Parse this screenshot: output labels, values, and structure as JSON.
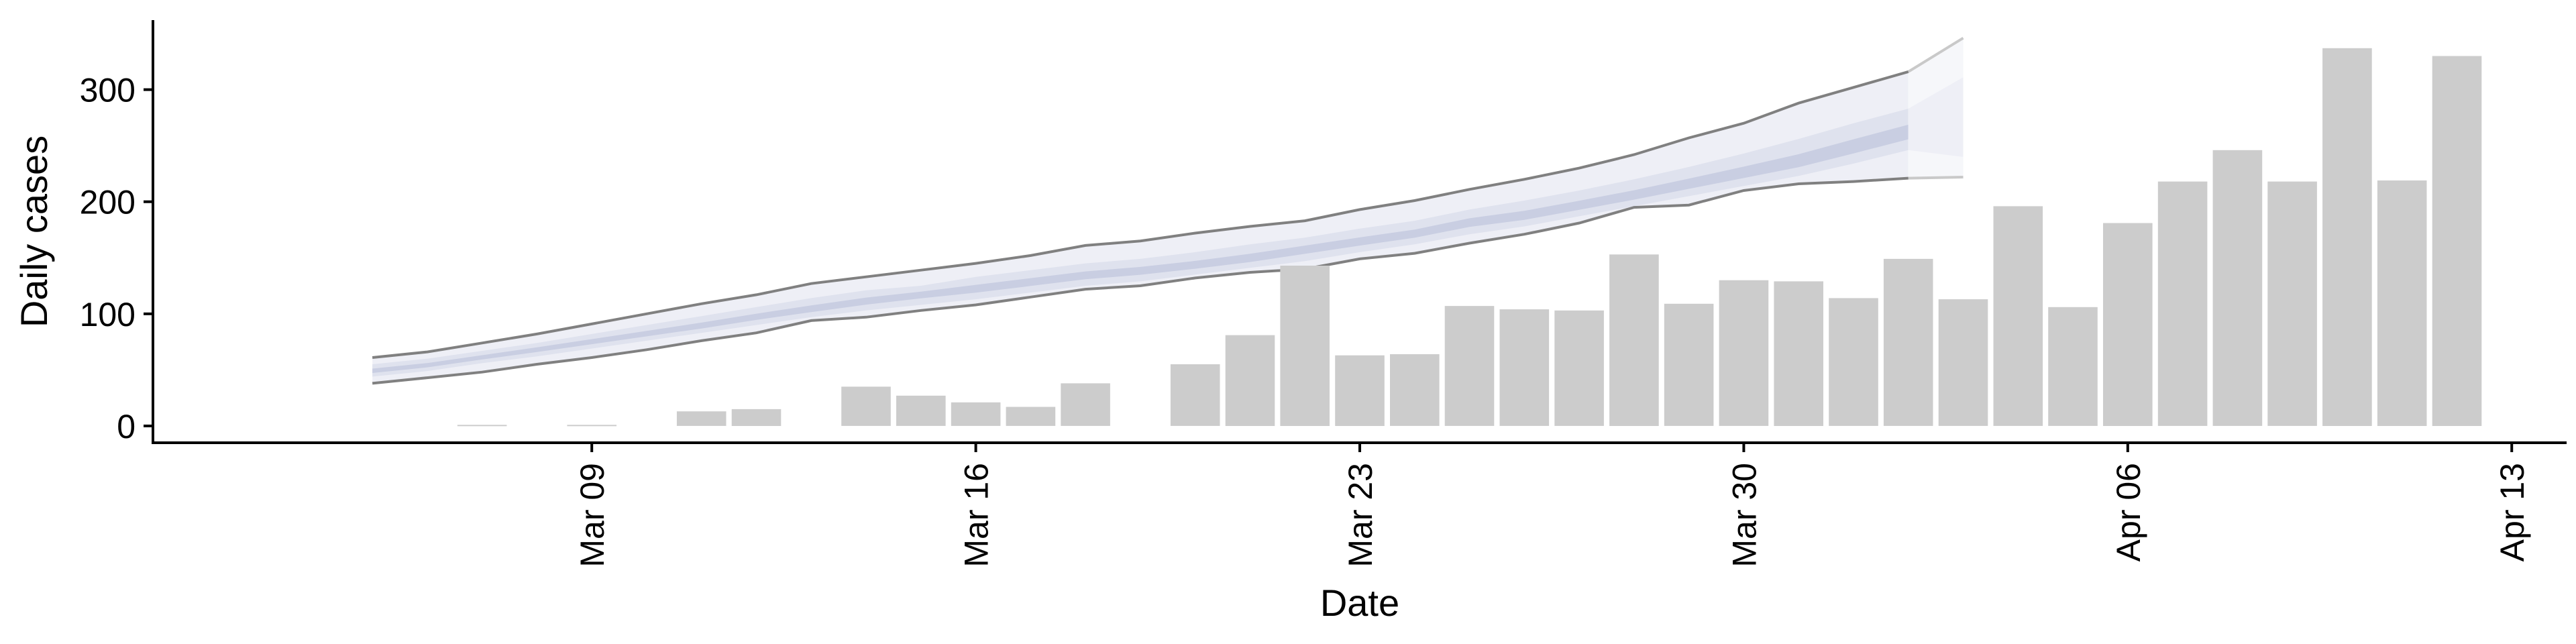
{
  "chart_data": {
    "type": "bar",
    "xlabel": "Date",
    "ylabel": "Daily cases",
    "ylim": [
      -15,
      362
    ],
    "xlim": [
      "2020-03-01",
      "2020-04-14"
    ],
    "grid": false,
    "legend": "none",
    "y_ticks": [
      0,
      100,
      200,
      300
    ],
    "x_ticks": [
      {
        "date": "2020-03-09",
        "label": "Mar 09"
      },
      {
        "date": "2020-03-16",
        "label": "Mar 16"
      },
      {
        "date": "2020-03-23",
        "label": "Mar 23"
      },
      {
        "date": "2020-03-30",
        "label": "Mar 30"
      },
      {
        "date": "2020-04-06",
        "label": "Apr 06"
      },
      {
        "date": "2020-04-13",
        "label": "Apr 13"
      }
    ],
    "bars": {
      "color": "#cccccc",
      "data": [
        {
          "date": "2020-03-07",
          "value": 1
        },
        {
          "date": "2020-03-09",
          "value": 1
        },
        {
          "date": "2020-03-11",
          "value": 13
        },
        {
          "date": "2020-03-12",
          "value": 15
        },
        {
          "date": "2020-03-14",
          "value": 35
        },
        {
          "date": "2020-03-15",
          "value": 27
        },
        {
          "date": "2020-03-16",
          "value": 21
        },
        {
          "date": "2020-03-17",
          "value": 17
        },
        {
          "date": "2020-03-18",
          "value": 38
        },
        {
          "date": "2020-03-20",
          "value": 55
        },
        {
          "date": "2020-03-21",
          "value": 81
        },
        {
          "date": "2020-03-22",
          "value": 143
        },
        {
          "date": "2020-03-23",
          "value": 63
        },
        {
          "date": "2020-03-24",
          "value": 64
        },
        {
          "date": "2020-03-25",
          "value": 107
        },
        {
          "date": "2020-03-26",
          "value": 104
        },
        {
          "date": "2020-03-27",
          "value": 103
        },
        {
          "date": "2020-03-28",
          "value": 153
        },
        {
          "date": "2020-03-29",
          "value": 109
        },
        {
          "date": "2020-03-30",
          "value": 130
        },
        {
          "date": "2020-03-31",
          "value": 129
        },
        {
          "date": "2020-04-01",
          "value": 114
        },
        {
          "date": "2020-04-02",
          "value": 149
        },
        {
          "date": "2020-04-03",
          "value": 113
        },
        {
          "date": "2020-04-04",
          "value": 196
        },
        {
          "date": "2020-04-05",
          "value": 106
        },
        {
          "date": "2020-04-06",
          "value": 181
        },
        {
          "date": "2020-04-07",
          "value": 218
        },
        {
          "date": "2020-04-08",
          "value": 246
        },
        {
          "date": "2020-04-09",
          "value": 218
        },
        {
          "date": "2020-04-10",
          "value": 337
        },
        {
          "date": "2020-04-11",
          "value": 219
        },
        {
          "date": "2020-04-12",
          "value": 330
        }
      ]
    },
    "band": {
      "outer_fill": "#eeeff6",
      "mid_fill": "#dfe2ee",
      "inner_fill": "#c9cee2",
      "line_color": "#808080",
      "fade_tail_fill": "#f6f7fa",
      "dates": [
        "2020-03-05",
        "2020-03-06",
        "2020-03-07",
        "2020-03-08",
        "2020-03-09",
        "2020-03-10",
        "2020-03-11",
        "2020-03-12",
        "2020-03-13",
        "2020-03-14",
        "2020-03-15",
        "2020-03-16",
        "2020-03-17",
        "2020-03-18",
        "2020-03-19",
        "2020-03-20",
        "2020-03-21",
        "2020-03-22",
        "2020-03-23",
        "2020-03-24",
        "2020-03-25",
        "2020-03-26",
        "2020-03-27",
        "2020-03-28",
        "2020-03-29",
        "2020-03-30",
        "2020-03-31",
        "2020-04-01",
        "2020-04-02"
      ],
      "upper": [
        61,
        66,
        74,
        82,
        91,
        100,
        109,
        117,
        127,
        133,
        139,
        145,
        152,
        161,
        165,
        172,
        178,
        183,
        193,
        201,
        211,
        220,
        230,
        242,
        257,
        270,
        288,
        302,
        316
      ],
      "mid_hi": [
        55,
        60,
        67,
        74,
        82,
        90,
        98,
        106,
        114,
        121,
        125,
        133,
        139,
        145,
        149,
        155,
        162,
        168,
        176,
        183,
        193,
        201,
        210,
        220,
        231,
        243,
        256,
        270,
        283
      ],
      "center": [
        49,
        54,
        61,
        68,
        75,
        82,
        89,
        97,
        104,
        111,
        117,
        122,
        128,
        134,
        138,
        143,
        149,
        157,
        164,
        171,
        181,
        187,
        196,
        205,
        215,
        225,
        235,
        248,
        261
      ],
      "mid_lo": [
        44,
        49,
        56,
        62,
        69,
        76,
        83,
        90,
        97,
        103,
        108,
        113,
        119,
        125,
        129,
        135,
        141,
        147,
        155,
        162,
        171,
        178,
        187,
        196,
        205,
        214,
        223,
        234,
        246
      ],
      "lower": [
        38,
        43,
        48,
        55,
        61,
        68,
        76,
        83,
        94,
        97,
        103,
        108,
        115,
        122,
        125,
        132,
        137,
        140,
        149,
        154,
        163,
        171,
        181,
        195,
        197,
        210,
        216,
        218,
        221
      ],
      "tail": {
        "dates": [
          "2020-04-02",
          "2020-04-03"
        ],
        "upper": [
          316,
          346
        ],
        "mid_hi": [
          283,
          311
        ],
        "center": [
          261,
          262
        ],
        "mid_lo": [
          246,
          240
        ],
        "lower": [
          221,
          222
        ]
      }
    }
  }
}
